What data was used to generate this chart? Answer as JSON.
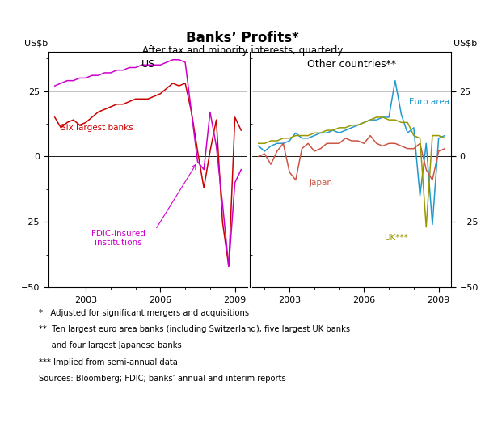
{
  "title": "Banks’ Profits*",
  "subtitle": "After tax and minority interests, quarterly",
  "ylabel": "US$b",
  "ylim": [
    -50,
    40
  ],
  "yticks": [
    -50,
    -25,
    0,
    25
  ],
  "xlim": [
    2001.5,
    2009.5
  ],
  "xticks": [
    2003,
    2006,
    2009
  ],
  "left_label": "US",
  "right_label": "Other countries**",
  "colors": {
    "six_largest": "#cc0000",
    "fdic": "#cc00cc",
    "euro": "#2299cc",
    "japan": "#cc5544",
    "uk": "#999900"
  },
  "us_six_x": [
    2001.75,
    2002.0,
    2002.25,
    2002.5,
    2002.75,
    2003.0,
    2003.25,
    2003.5,
    2003.75,
    2004.0,
    2004.25,
    2004.5,
    2004.75,
    2005.0,
    2005.25,
    2005.5,
    2005.75,
    2006.0,
    2006.25,
    2006.5,
    2006.75,
    2007.0,
    2007.25,
    2007.5,
    2007.75,
    2008.0,
    2008.25,
    2008.5,
    2008.75,
    2009.0,
    2009.25
  ],
  "us_six_y": [
    15,
    11,
    13,
    14,
    12,
    13,
    15,
    17,
    18,
    19,
    20,
    20,
    21,
    22,
    22,
    22,
    23,
    24,
    26,
    28,
    27,
    28,
    17,
    2,
    -12,
    2,
    14,
    -25,
    -42,
    15,
    10
  ],
  "us_fdic_x": [
    2001.75,
    2002.0,
    2002.25,
    2002.5,
    2002.75,
    2003.0,
    2003.25,
    2003.5,
    2003.75,
    2004.0,
    2004.25,
    2004.5,
    2004.75,
    2005.0,
    2005.25,
    2005.5,
    2005.75,
    2006.0,
    2006.25,
    2006.5,
    2006.75,
    2007.0,
    2007.25,
    2007.5,
    2007.75,
    2008.0,
    2008.25,
    2008.5,
    2008.75,
    2009.0,
    2009.25
  ],
  "us_fdic_y": [
    27,
    28,
    29,
    29,
    30,
    30,
    31,
    31,
    32,
    32,
    33,
    33,
    34,
    34,
    35,
    35,
    35,
    35,
    36,
    37,
    37,
    36,
    17,
    -2,
    -5,
    17,
    4,
    -18,
    -42,
    -10,
    -5
  ],
  "euro_x": [
    2001.75,
    2002.0,
    2002.25,
    2002.5,
    2002.75,
    2003.0,
    2003.25,
    2003.5,
    2003.75,
    2004.0,
    2004.25,
    2004.5,
    2004.75,
    2005.0,
    2005.25,
    2005.5,
    2005.75,
    2006.0,
    2006.25,
    2006.5,
    2006.75,
    2007.0,
    2007.25,
    2007.5,
    2007.75,
    2008.0,
    2008.25,
    2008.5,
    2008.75,
    2009.0,
    2009.25
  ],
  "euro_y": [
    4,
    2,
    4,
    5,
    5,
    6,
    9,
    7,
    7,
    8,
    9,
    9,
    10,
    9,
    10,
    11,
    12,
    13,
    14,
    14,
    15,
    15,
    29,
    16,
    9,
    11,
    -15,
    5,
    -26,
    7,
    8
  ],
  "japan_x": [
    2001.75,
    2002.0,
    2002.25,
    2002.5,
    2002.75,
    2003.0,
    2003.25,
    2003.5,
    2003.75,
    2004.0,
    2004.25,
    2004.5,
    2004.75,
    2005.0,
    2005.25,
    2005.5,
    2005.75,
    2006.0,
    2006.25,
    2006.5,
    2006.75,
    2007.0,
    2007.25,
    2007.5,
    2007.75,
    2008.0,
    2008.25,
    2008.5,
    2008.75,
    2009.0,
    2009.25
  ],
  "japan_y": [
    0,
    1,
    -3,
    2,
    5,
    -6,
    -9,
    3,
    5,
    2,
    3,
    5,
    5,
    5,
    7,
    6,
    6,
    5,
    8,
    5,
    4,
    5,
    5,
    4,
    3,
    3,
    5,
    -5,
    -9,
    2,
    3
  ],
  "uk_x": [
    2001.75,
    2002.0,
    2002.25,
    2002.5,
    2002.75,
    2003.0,
    2003.25,
    2003.5,
    2003.75,
    2004.0,
    2004.25,
    2004.5,
    2004.75,
    2005.0,
    2005.25,
    2005.5,
    2005.75,
    2006.0,
    2006.25,
    2006.5,
    2006.75,
    2007.0,
    2007.25,
    2007.5,
    2007.75,
    2008.0,
    2008.25,
    2008.5,
    2008.75,
    2009.0,
    2009.25
  ],
  "uk_y": [
    5,
    5,
    6,
    6,
    7,
    7,
    8,
    8,
    8,
    9,
    9,
    10,
    10,
    11,
    11,
    12,
    12,
    13,
    14,
    15,
    15,
    14,
    14,
    13,
    13,
    8,
    7,
    -27,
    8,
    8,
    7
  ],
  "footnote1": "*   Adjusted for significant mergers and acquisitions",
  "footnote2": "**  Ten largest euro area banks (including Switzerland), five largest UK banks",
  "footnote2b": "     and four largest Japanese banks",
  "footnote3": "*** Implied from semi-annual data",
  "footnote4": "Sources: Bloomberg; FDIC; banks’ annual and interim reports"
}
